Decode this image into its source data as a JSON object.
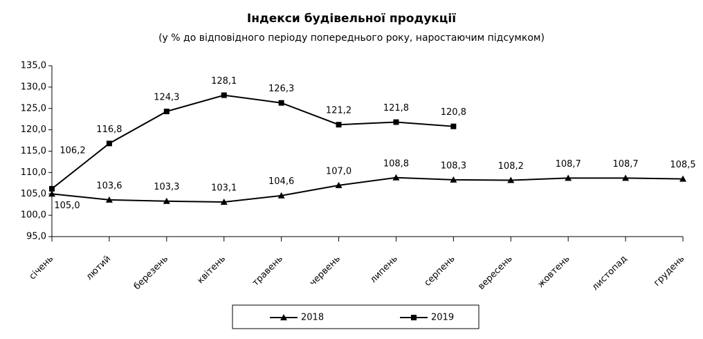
{
  "chart_data": {
    "type": "line",
    "title": "Індекси будівельної продукції",
    "subtitle": "(у % до відповідного періоду попереднього року, наростаючим підсумком)",
    "categories": [
      "січень",
      "лютий",
      "березень",
      "квітень",
      "травень",
      "червень",
      "липень",
      "серпень",
      "вересень",
      "жовтень",
      "листопад",
      "грудень"
    ],
    "series": [
      {
        "name": "2018",
        "color": "#000000",
        "marker": "triangle",
        "values": [
          105.0,
          103.6,
          103.3,
          103.1,
          104.6,
          107.0,
          108.8,
          108.3,
          108.2,
          108.7,
          108.7,
          108.5
        ],
        "value_labels": [
          "105,0",
          "103,6",
          "103,3",
          "103,1",
          "104,6",
          "107,0",
          "108,8",
          "108,3",
          "108,2",
          "108,7",
          "108,7",
          "108,5"
        ]
      },
      {
        "name": "2019",
        "color": "#000000",
        "marker": "square",
        "values": [
          106.2,
          116.8,
          124.3,
          128.1,
          126.3,
          121.2,
          121.8,
          120.8,
          null,
          null,
          null,
          null
        ],
        "value_labels": [
          "106,2",
          "116,8",
          "124,3",
          "128,1",
          "126,3",
          "121,2",
          "121,8",
          "120,8",
          null,
          null,
          null,
          null
        ]
      }
    ],
    "ylim": [
      95,
      135
    ],
    "yticks": [
      {
        "value": 95,
        "label": "95,0"
      },
      {
        "value": 100,
        "label": "100,0"
      },
      {
        "value": 105,
        "label": "105,0"
      },
      {
        "value": 110,
        "label": "110,0"
      },
      {
        "value": 115,
        "label": "115,0"
      },
      {
        "value": 120,
        "label": "120,0"
      },
      {
        "value": 125,
        "label": "125,0"
      },
      {
        "value": 130,
        "label": "130,0"
      },
      {
        "value": 135,
        "label": "135,0"
      }
    ],
    "grid": false,
    "legend": "bottom"
  }
}
